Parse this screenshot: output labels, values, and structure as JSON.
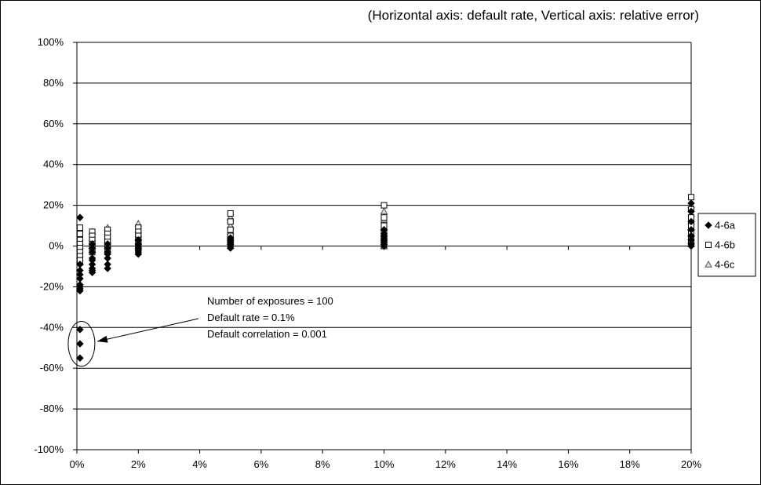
{
  "chart_data": {
    "type": "scatter",
    "title": "(Horizontal axis: default rate, Vertical axis: relative error)",
    "xlim": [
      0,
      20
    ],
    "ylim": [
      -100,
      100
    ],
    "x_ticks": [
      "0%",
      "2%",
      "4%",
      "6%",
      "8%",
      "10%",
      "12%",
      "14%",
      "16%",
      "18%",
      "20%"
    ],
    "y_ticks": [
      "100%",
      "80%",
      "60%",
      "40%",
      "20%",
      "0%",
      "-20%",
      "-40%",
      "-60%",
      "-80%",
      "-100%"
    ],
    "grid": "horizontal",
    "legend_position": "right",
    "series": [
      {
        "name": "4-6a",
        "marker": "diamond",
        "points": [
          [
            0.1,
            14
          ],
          [
            0.1,
            -9
          ],
          [
            0.1,
            -12
          ],
          [
            0.1,
            -14
          ],
          [
            0.1,
            -16
          ],
          [
            0.1,
            -19
          ],
          [
            0.1,
            -20
          ],
          [
            0.1,
            -21
          ],
          [
            0.1,
            -22
          ],
          [
            0.1,
            -41
          ],
          [
            0.1,
            -48
          ],
          [
            0.1,
            -55
          ],
          [
            0.5,
            1
          ],
          [
            0.5,
            -1
          ],
          [
            0.5,
            -3
          ],
          [
            0.5,
            -6
          ],
          [
            0.5,
            -7
          ],
          [
            0.5,
            -9
          ],
          [
            0.5,
            -11
          ],
          [
            0.5,
            -12
          ],
          [
            0.5,
            -13
          ],
          [
            1,
            1
          ],
          [
            1,
            -1
          ],
          [
            1,
            -3
          ],
          [
            1,
            -4
          ],
          [
            1,
            -6
          ],
          [
            1,
            -9
          ],
          [
            1,
            -11
          ],
          [
            2,
            3
          ],
          [
            2,
            1
          ],
          [
            2,
            0
          ],
          [
            2,
            -1
          ],
          [
            2,
            -2
          ],
          [
            2,
            -3
          ],
          [
            2,
            -4
          ],
          [
            5,
            4
          ],
          [
            5,
            3
          ],
          [
            5,
            2
          ],
          [
            5,
            1
          ],
          [
            5,
            0
          ],
          [
            5,
            -1
          ],
          [
            10,
            8
          ],
          [
            10,
            6
          ],
          [
            10,
            5
          ],
          [
            10,
            4
          ],
          [
            10,
            3
          ],
          [
            10,
            2
          ],
          [
            10,
            1
          ],
          [
            10,
            0
          ],
          [
            20,
            21
          ],
          [
            20,
            17
          ],
          [
            20,
            12
          ],
          [
            20,
            8
          ],
          [
            20,
            5
          ],
          [
            20,
            3
          ],
          [
            20,
            1
          ],
          [
            20,
            0
          ]
        ]
      },
      {
        "name": "4-6b",
        "marker": "square",
        "points": [
          [
            0.1,
            9
          ],
          [
            0.1,
            6
          ],
          [
            0.1,
            3
          ],
          [
            0.1,
            1
          ],
          [
            0.1,
            -1
          ],
          [
            0.1,
            -3
          ],
          [
            0.1,
            -5
          ],
          [
            0.1,
            -7
          ],
          [
            0.5,
            7
          ],
          [
            0.5,
            5
          ],
          [
            0.5,
            3
          ],
          [
            0.5,
            1
          ],
          [
            0.5,
            -1
          ],
          [
            0.5,
            -3
          ],
          [
            1,
            8
          ],
          [
            1,
            6
          ],
          [
            1,
            4
          ],
          [
            1,
            2
          ],
          [
            1,
            0
          ],
          [
            1,
            -2
          ],
          [
            2,
            9
          ],
          [
            2,
            7
          ],
          [
            2,
            5
          ],
          [
            2,
            3
          ],
          [
            2,
            1
          ],
          [
            2,
            -1
          ],
          [
            5,
            16
          ],
          [
            5,
            12
          ],
          [
            5,
            8
          ],
          [
            5,
            5
          ],
          [
            5,
            3
          ],
          [
            5,
            1
          ],
          [
            10,
            20
          ],
          [
            10,
            14
          ],
          [
            10,
            10
          ],
          [
            10,
            7
          ],
          [
            10,
            4
          ],
          [
            10,
            2
          ],
          [
            10,
            0
          ],
          [
            20,
            24
          ],
          [
            20,
            18
          ],
          [
            20,
            14
          ],
          [
            20,
            10
          ],
          [
            20,
            7
          ],
          [
            20,
            4
          ],
          [
            20,
            2
          ]
        ]
      },
      {
        "name": "4-6c",
        "marker": "triangle",
        "points": [
          [
            0.1,
            4
          ],
          [
            0.1,
            2
          ],
          [
            0.1,
            0
          ],
          [
            0.1,
            -2
          ],
          [
            0.1,
            -4
          ],
          [
            0.1,
            -6
          ],
          [
            0.1,
            -8
          ],
          [
            0.5,
            7
          ],
          [
            0.5,
            4
          ],
          [
            0.5,
            2
          ],
          [
            0.5,
            0
          ],
          [
            0.5,
            -2
          ],
          [
            1,
            9
          ],
          [
            1,
            7
          ],
          [
            1,
            5
          ],
          [
            1,
            3
          ],
          [
            1,
            1
          ],
          [
            2,
            11
          ],
          [
            2,
            8
          ],
          [
            2,
            6
          ],
          [
            2,
            4
          ],
          [
            2,
            2
          ],
          [
            2,
            0
          ],
          [
            5,
            14
          ],
          [
            5,
            10
          ],
          [
            5,
            7
          ],
          [
            5,
            4
          ],
          [
            5,
            2
          ],
          [
            5,
            0
          ],
          [
            10,
            17
          ],
          [
            10,
            13
          ],
          [
            10,
            9
          ],
          [
            10,
            6
          ],
          [
            10,
            4
          ],
          [
            10,
            2
          ],
          [
            10,
            0
          ],
          [
            20,
            20
          ],
          [
            20,
            16
          ],
          [
            20,
            12
          ],
          [
            20,
            9
          ],
          [
            20,
            6
          ],
          [
            20,
            3
          ],
          [
            20,
            1
          ]
        ]
      }
    ],
    "annotation": {
      "lines": [
        "Number  of exposures  = 100",
        "Default rate  = 0.1%",
        "Default correlation   = 0.001"
      ],
      "target_point": [
        0.1,
        -48
      ],
      "ellipse_y_range": [
        -37,
        -59
      ]
    }
  }
}
